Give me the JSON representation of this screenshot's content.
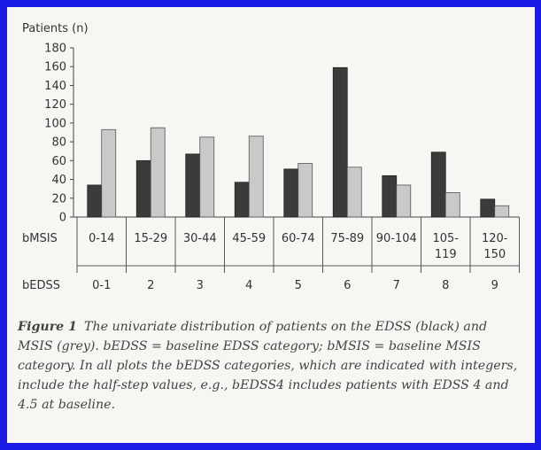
{
  "chart_data": {
    "type": "bar",
    "ylabel": "Patients (n)",
    "yticks": [
      0,
      20,
      40,
      60,
      80,
      100,
      120,
      140,
      160,
      180
    ],
    "ylim": [
      0,
      180
    ],
    "row_labels": {
      "bmsis": "bMSIS",
      "bedss": "bEDSS"
    },
    "categories": [
      {
        "bmsis": [
          "0-14"
        ],
        "bedss": "0-1"
      },
      {
        "bmsis": [
          "15-29"
        ],
        "bedss": "2"
      },
      {
        "bmsis": [
          "30-44"
        ],
        "bedss": "3"
      },
      {
        "bmsis": [
          "45-59"
        ],
        "bedss": "4"
      },
      {
        "bmsis": [
          "60-74"
        ],
        "bedss": "5"
      },
      {
        "bmsis": [
          "75-89"
        ],
        "bedss": "6"
      },
      {
        "bmsis": [
          "90-104"
        ],
        "bedss": "7"
      },
      {
        "bmsis": [
          "105-",
          "119"
        ],
        "bedss": "8"
      },
      {
        "bmsis": [
          "120-",
          "150"
        ],
        "bedss": "9"
      }
    ],
    "series": [
      {
        "values": [
          34,
          60,
          67,
          37,
          51,
          159,
          44,
          69,
          19
        ],
        "color": "#3b3b3b"
      },
      {
        "values": [
          93,
          95,
          85,
          86,
          57,
          53,
          34,
          26,
          12
        ],
        "color": "#c9c9c9"
      }
    ],
    "grid": false
  },
  "caption": {
    "label": "Figure 1",
    "text": "The univariate distribution of patients on the EDSS (black) and MSIS (grey). bEDSS = baseline EDSS category; bMSIS = baseline MSIS category. In all plots the bEDSS categories, which are indicated with integers, include the half-step values, e.g., bEDSS4 includes patients with EDSS 4 and 4.5 at baseline."
  }
}
